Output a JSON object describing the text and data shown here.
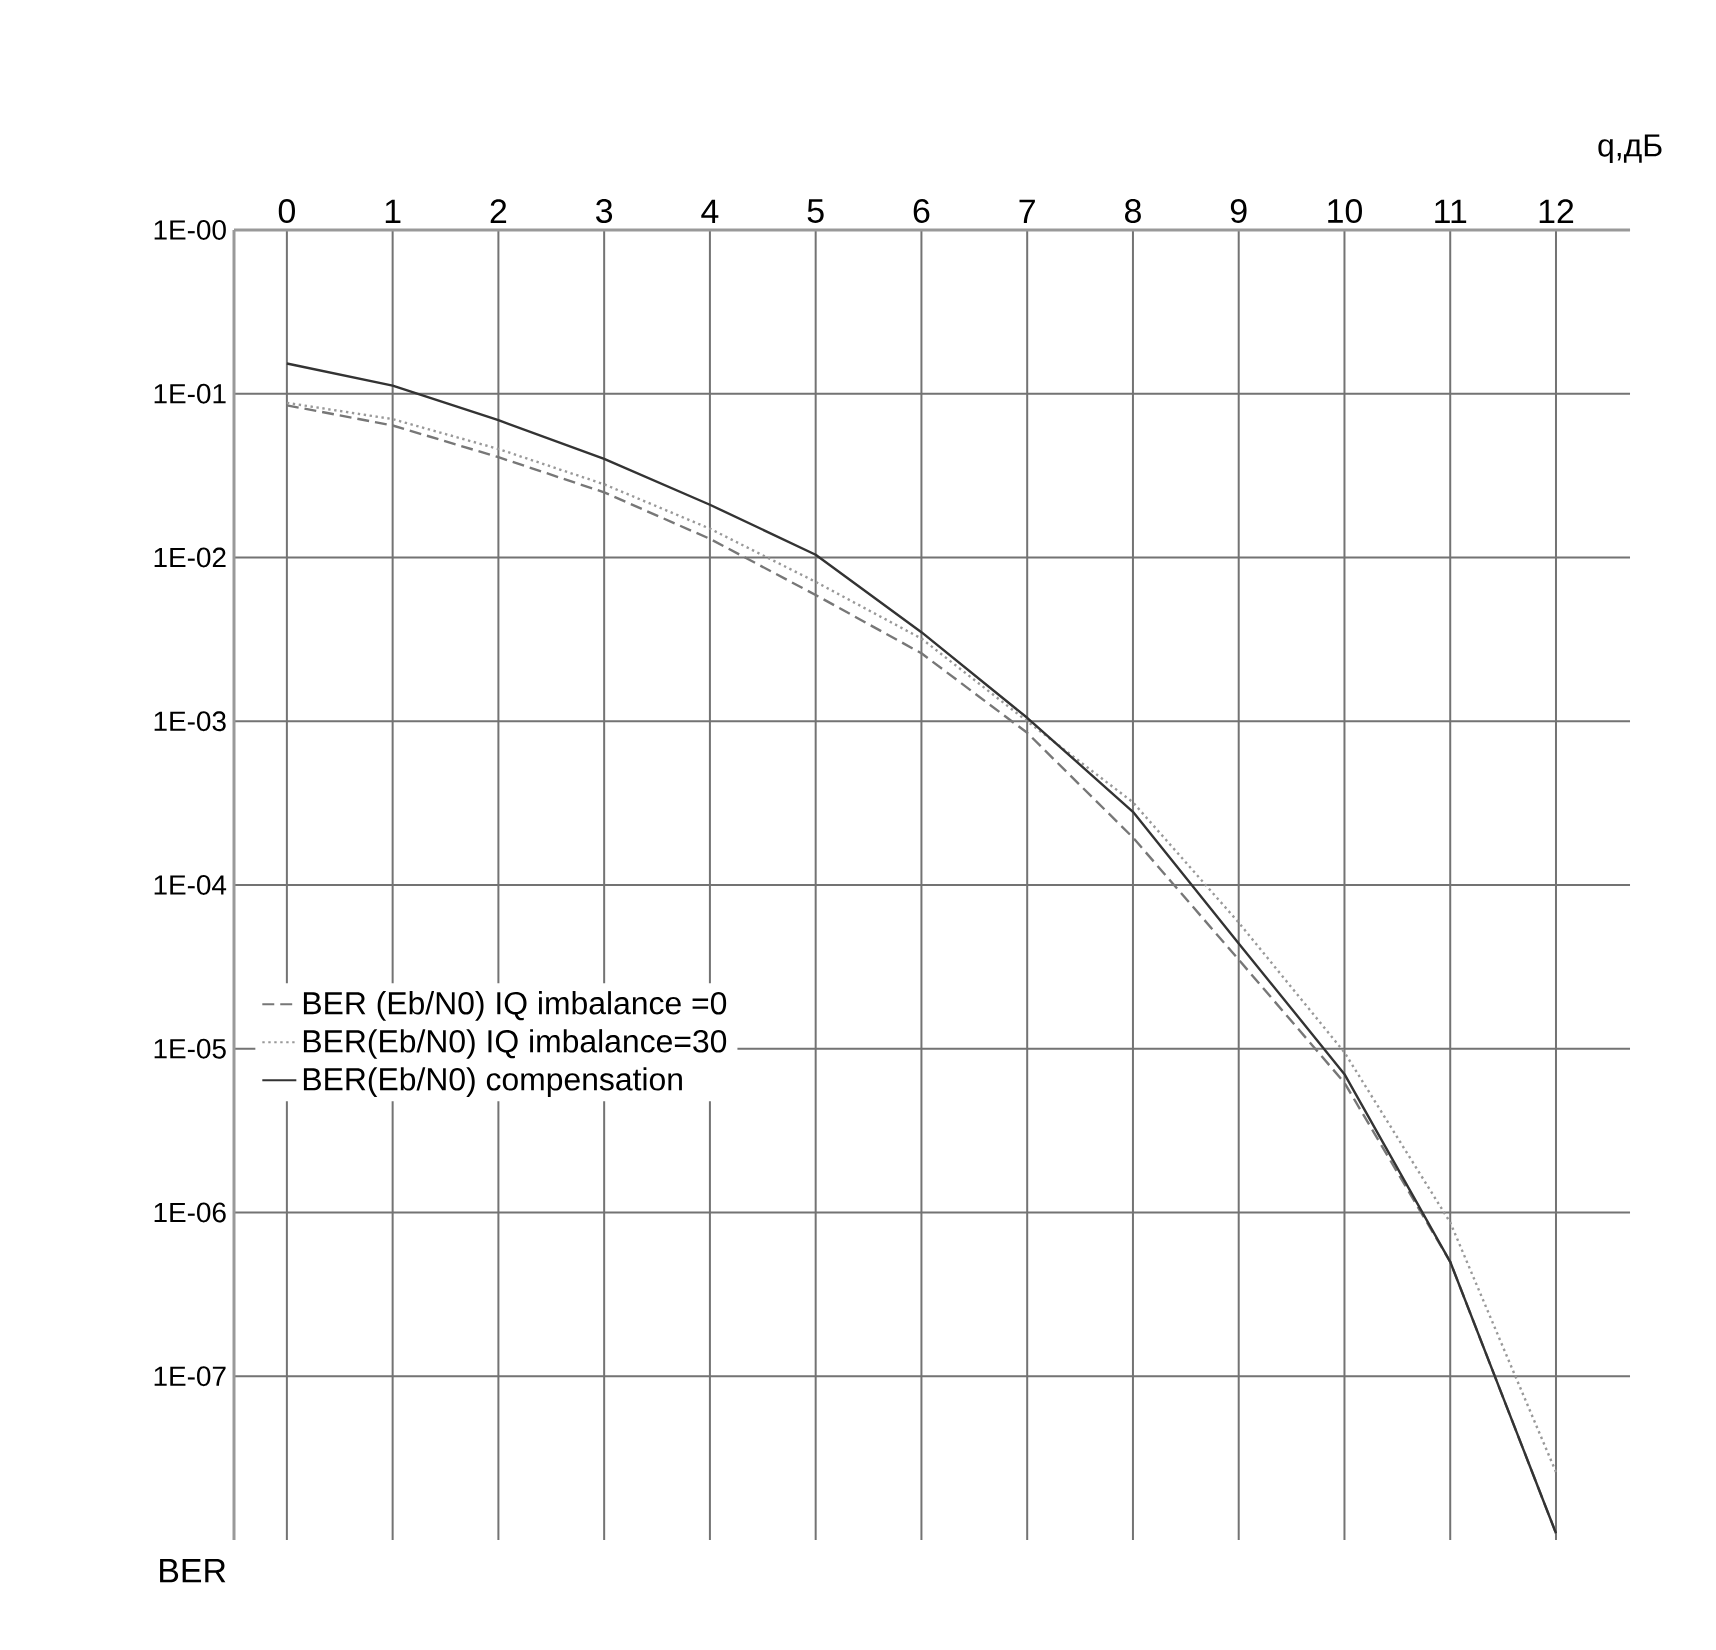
{
  "chart_data": {
    "type": "line",
    "xlabel": "q,дБ",
    "ylabel": "BER",
    "log": "y",
    "grid": true,
    "legend": "left",
    "x": [
      0,
      1,
      2,
      3,
      4,
      5,
      6,
      7,
      8,
      9,
      10,
      11,
      12
    ],
    "xlim": [
      -0.5,
      12.7
    ],
    "xticks": [
      0,
      1,
      2,
      3,
      4,
      5,
      6,
      7,
      8,
      9,
      10,
      11,
      12
    ],
    "ylim": [
      1e-08,
      1
    ],
    "yticks": [
      {
        "value": 1,
        "label": "1E-00"
      },
      {
        "value": 0.1,
        "label": "1E-01"
      },
      {
        "value": 0.01,
        "label": "1E-02"
      },
      {
        "value": 0.001,
        "label": "1E-03"
      },
      {
        "value": 0.0001,
        "label": "1E-04"
      },
      {
        "value": 1e-05,
        "label": "1E-05"
      },
      {
        "value": 1e-06,
        "label": "1E-06"
      },
      {
        "value": 1e-07,
        "label": "1E-07"
      }
    ],
    "series": [
      {
        "name": "BER (Eb/N0) IQ imbalance =0",
        "color": "#777777",
        "line_style": "dashed",
        "values": [
          0.085,
          0.064,
          0.041,
          0.025,
          0.013,
          0.0059,
          0.0026,
          0.00085,
          0.000195,
          3.5e-05,
          6.2e-06,
          5e-07,
          1.1e-08
        ]
      },
      {
        "name": "BER(Eb/N0) IQ imbalance=30",
        "color": "#999999",
        "line_style": "dotted",
        "values": [
          0.088,
          0.07,
          0.046,
          0.028,
          0.015,
          0.0071,
          0.0032,
          0.001,
          0.00032,
          5.9e-05,
          9.5e-06,
          8.7e-07,
          2.6e-08
        ]
      },
      {
        "name": "BER(Eb/N0) compensation",
        "color": "#333333",
        "line_style": "solid",
        "values": [
          0.153,
          0.112,
          0.069,
          0.04,
          0.021,
          0.0104,
          0.0035,
          0.00105,
          0.00028,
          4.4e-05,
          7e-06,
          5e-07,
          1.1e-08
        ]
      }
    ]
  }
}
